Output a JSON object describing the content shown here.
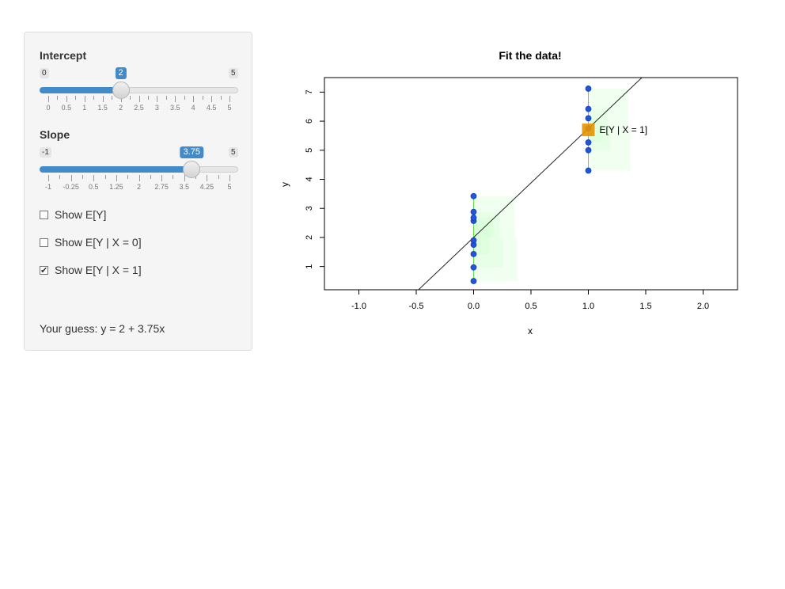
{
  "sidebar": {
    "intercept": {
      "label": "Intercept",
      "min": "0",
      "max": "5",
      "value": 2,
      "value_text": "2",
      "range": [
        0,
        5
      ],
      "tick_labels": [
        "0",
        "0.5",
        "1",
        "1.5",
        "2",
        "2.5",
        "3",
        "3.5",
        "4",
        "4.5",
        "5"
      ]
    },
    "slope": {
      "label": "Slope",
      "min": "-1",
      "max": "5",
      "value": 3.75,
      "value_text": "3.75",
      "range": [
        -1,
        5
      ],
      "tick_labels": [
        "-1",
        "-0.25",
        "0.5",
        "1.25",
        "2",
        "2.75",
        "3.5",
        "4.25",
        "5"
      ]
    },
    "checkboxes": [
      {
        "label": "Show E[Y]",
        "checked": false
      },
      {
        "label": "Show E[Y | X = 0]",
        "checked": false
      },
      {
        "label": "Show E[Y | X = 1]",
        "checked": true
      }
    ],
    "guess_text": "Your guess: y = 2 + 3.75x"
  },
  "chart_data": {
    "type": "scatter",
    "title": "Fit the data!",
    "xlabel": "x",
    "ylabel": "y",
    "xlim": [
      -1.3,
      2.3
    ],
    "ylim": [
      0.2,
      7.5
    ],
    "x_ticks": [
      "-1.0",
      "-0.5",
      "0.0",
      "0.5",
      "1.0",
      "1.5",
      "2.0"
    ],
    "y_ticks": [
      "1",
      "2",
      "3",
      "4",
      "5",
      "6",
      "7"
    ],
    "points": [
      {
        "x": 0,
        "y": 0.5
      },
      {
        "x": 0,
        "y": 0.97
      },
      {
        "x": 0,
        "y": 1.43
      },
      {
        "x": 0,
        "y": 1.75
      },
      {
        "x": 0,
        "y": 1.9
      },
      {
        "x": 0,
        "y": 2.57
      },
      {
        "x": 0,
        "y": 2.68
      },
      {
        "x": 0,
        "y": 2.88
      },
      {
        "x": 0,
        "y": 3.42
      },
      {
        "x": 1,
        "y": 4.3
      },
      {
        "x": 1,
        "y": 5.0
      },
      {
        "x": 1,
        "y": 5.27
      },
      {
        "x": 1,
        "y": 5.75
      },
      {
        "x": 1,
        "y": 6.1
      },
      {
        "x": 1,
        "y": 6.42
      },
      {
        "x": 1,
        "y": 7.12
      }
    ],
    "fit_line": {
      "intercept": 2,
      "slope": 3.75
    },
    "conditional_mean": {
      "x": 1,
      "y": 5.7,
      "label": "E[Y | X = 1]"
    },
    "colors": {
      "points": "#2255dd",
      "line": "#222222",
      "residual": "#66dd44",
      "mean_marker": "#e69500",
      "squares": "#ccffcc"
    }
  }
}
